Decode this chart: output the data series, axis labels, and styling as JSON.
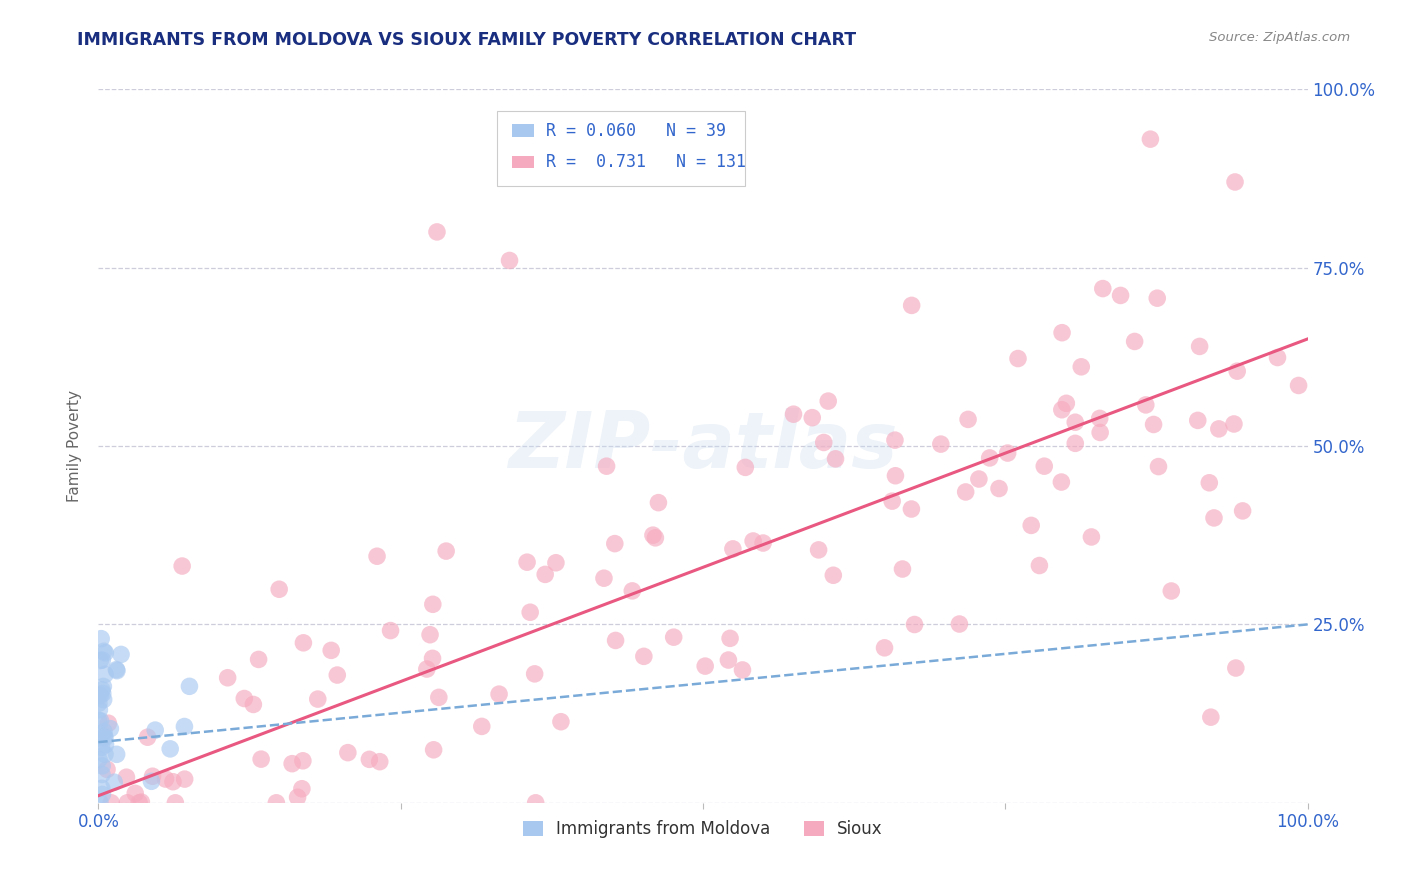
{
  "title": "IMMIGRANTS FROM MOLDOVA VS SIOUX FAMILY POVERTY CORRELATION CHART",
  "source": "Source: ZipAtlas.com",
  "ylabel": "Family Poverty",
  "xlim": [
    0,
    1
  ],
  "ylim": [
    0,
    1
  ],
  "legend_r1": "R = 0.060",
  "legend_n1": "N = 39",
  "legend_r2": "R =  0.731",
  "legend_n2": "N = 131",
  "color_blue": "#A8C8F0",
  "color_pink": "#F5AABF",
  "color_line_blue": "#7AAAD8",
  "color_line_pink": "#E85880",
  "color_title": "#1A2E80",
  "color_axis_label": "#3366CC",
  "color_source": "#888888",
  "color_grid": "#C8C8D8",
  "color_legend_r": "#3366CC",
  "color_legend_label": "#333333",
  "sioux_trend_x0": 0.0,
  "sioux_trend_y0": 0.01,
  "sioux_trend_x1": 1.0,
  "sioux_trend_y1": 0.65,
  "moldova_trend_x0": 0.0,
  "moldova_trend_y0": 0.085,
  "moldova_trend_x1": 1.0,
  "moldova_trend_y1": 0.25
}
